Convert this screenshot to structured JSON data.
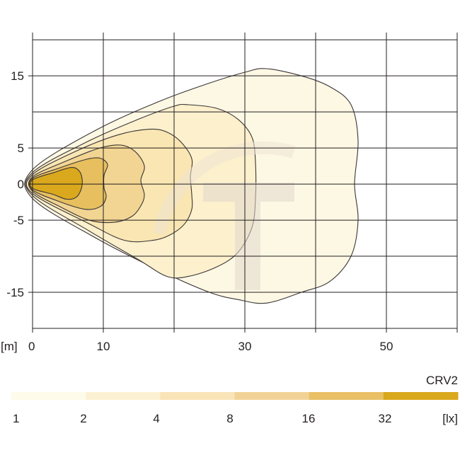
{
  "chart_data": {
    "type": "area",
    "title": "",
    "xlabel": "",
    "ylabel": "",
    "x_unit_label": "[m]",
    "xlim": [
      0,
      60
    ],
    "ylim": [
      -20,
      21
    ],
    "x_ticks": [
      0,
      10,
      30,
      50
    ],
    "y_ticks": [
      15,
      5,
      0,
      -5,
      -15
    ],
    "x_grid": [
      0,
      10,
      20,
      30,
      40,
      50,
      60
    ],
    "y_grid": [
      20,
      15,
      10,
      5,
      0,
      -5,
      -10,
      -15,
      -20
    ],
    "grid": true,
    "series": [
      {
        "lux": 1,
        "fill": "#fdf8e4",
        "points": [
          [
            0,
            2
          ],
          [
            9,
            7.5
          ],
          [
            18,
            11.5
          ],
          [
            25,
            14
          ],
          [
            30,
            15.5
          ],
          [
            33,
            16
          ],
          [
            38,
            15
          ],
          [
            42,
            13.5
          ],
          [
            45,
            11
          ],
          [
            46,
            6
          ],
          [
            45.5,
            0
          ],
          [
            46,
            -5
          ],
          [
            45,
            -10
          ],
          [
            42,
            -13.5
          ],
          [
            38,
            -15
          ],
          [
            33,
            -16.5
          ],
          [
            29,
            -16
          ],
          [
            25,
            -15
          ],
          [
            18,
            -12
          ],
          [
            9,
            -7.5
          ],
          [
            0,
            -2
          ]
        ]
      },
      {
        "lux": 2,
        "fill": "#fcf0cd",
        "points": [
          [
            0,
            1.6
          ],
          [
            8,
            6
          ],
          [
            15,
            9
          ],
          [
            20,
            10.8
          ],
          [
            22,
            11
          ],
          [
            26,
            10.5
          ],
          [
            29,
            9
          ],
          [
            31,
            6.5
          ],
          [
            31.5,
            3
          ],
          [
            31.5,
            -2
          ],
          [
            31,
            -6
          ],
          [
            29,
            -9.5
          ],
          [
            26,
            -11.5
          ],
          [
            22,
            -12.8
          ],
          [
            19,
            -12.8
          ],
          [
            15,
            -10.5
          ],
          [
            8,
            -6.5
          ],
          [
            0,
            -1.6
          ]
        ]
      },
      {
        "lux": 4,
        "fill": "#f9e6b2",
        "points": [
          [
            0,
            1.3
          ],
          [
            6,
            4.5
          ],
          [
            12,
            6.8
          ],
          [
            16.5,
            7.6
          ],
          [
            19,
            7.2
          ],
          [
            21,
            5.8
          ],
          [
            22.5,
            3.5
          ],
          [
            22.3,
            1
          ],
          [
            22.5,
            -1.5
          ],
          [
            22.5,
            -3.5
          ],
          [
            21.5,
            -5.5
          ],
          [
            19.5,
            -7
          ],
          [
            17,
            -7.8
          ],
          [
            13,
            -7.8
          ],
          [
            8,
            -5.5
          ],
          [
            0,
            -1.3
          ]
        ]
      },
      {
        "lux": 8,
        "fill": "#f2d593",
        "points": [
          [
            0,
            1
          ],
          [
            5,
            3.3
          ],
          [
            9.5,
            5
          ],
          [
            12.5,
            5.4
          ],
          [
            14.5,
            4.5
          ],
          [
            15.8,
            2.5
          ],
          [
            15.3,
            0.5
          ],
          [
            15.8,
            -1.5
          ],
          [
            15.3,
            -3
          ],
          [
            14,
            -4.5
          ],
          [
            11.5,
            -5.3
          ],
          [
            8,
            -5
          ],
          [
            4,
            -3.2
          ],
          [
            0,
            -1
          ]
        ]
      },
      {
        "lux": 16,
        "fill": "#e7bf5f",
        "points": [
          [
            0,
            0.8
          ],
          [
            4,
            2.3
          ],
          [
            7.5,
            3.4
          ],
          [
            9.5,
            3.6
          ],
          [
            10.6,
            2.7
          ],
          [
            10.1,
            1.2
          ],
          [
            10.1,
            -0.5
          ],
          [
            10.4,
            -1.8
          ],
          [
            9.6,
            -3.1
          ],
          [
            7.5,
            -3.5
          ],
          [
            4,
            -2.5
          ],
          [
            0,
            -0.8
          ]
        ]
      },
      {
        "lux": 32,
        "fill": "#d9a81c",
        "points": [
          [
            0,
            0.6
          ],
          [
            3,
            1.6
          ],
          [
            5.5,
            2.3
          ],
          [
            6.6,
            1.8
          ],
          [
            7,
            0.7
          ],
          [
            6.9,
            -0.6
          ],
          [
            6.2,
            -1.8
          ],
          [
            4.8,
            -2.1
          ],
          [
            2.8,
            -1.4
          ],
          [
            0,
            -0.6
          ]
        ]
      }
    ]
  },
  "legend": {
    "name": "CRV2",
    "unit": "[lx]",
    "bins": [
      {
        "label": "1",
        "color": "#fefbea"
      },
      {
        "label": "2",
        "color": "#fcf1d2"
      },
      {
        "label": "4",
        "color": "#f8e4b7"
      },
      {
        "label": "8",
        "color": "#f2d397"
      },
      {
        "label": "16",
        "color": "#e9c065"
      },
      {
        "label": "32",
        "color": "#d9a81c"
      }
    ]
  },
  "colors": {
    "grid": "#231f20",
    "contour": "#3a3536",
    "watermark": "#d9cfc2"
  }
}
